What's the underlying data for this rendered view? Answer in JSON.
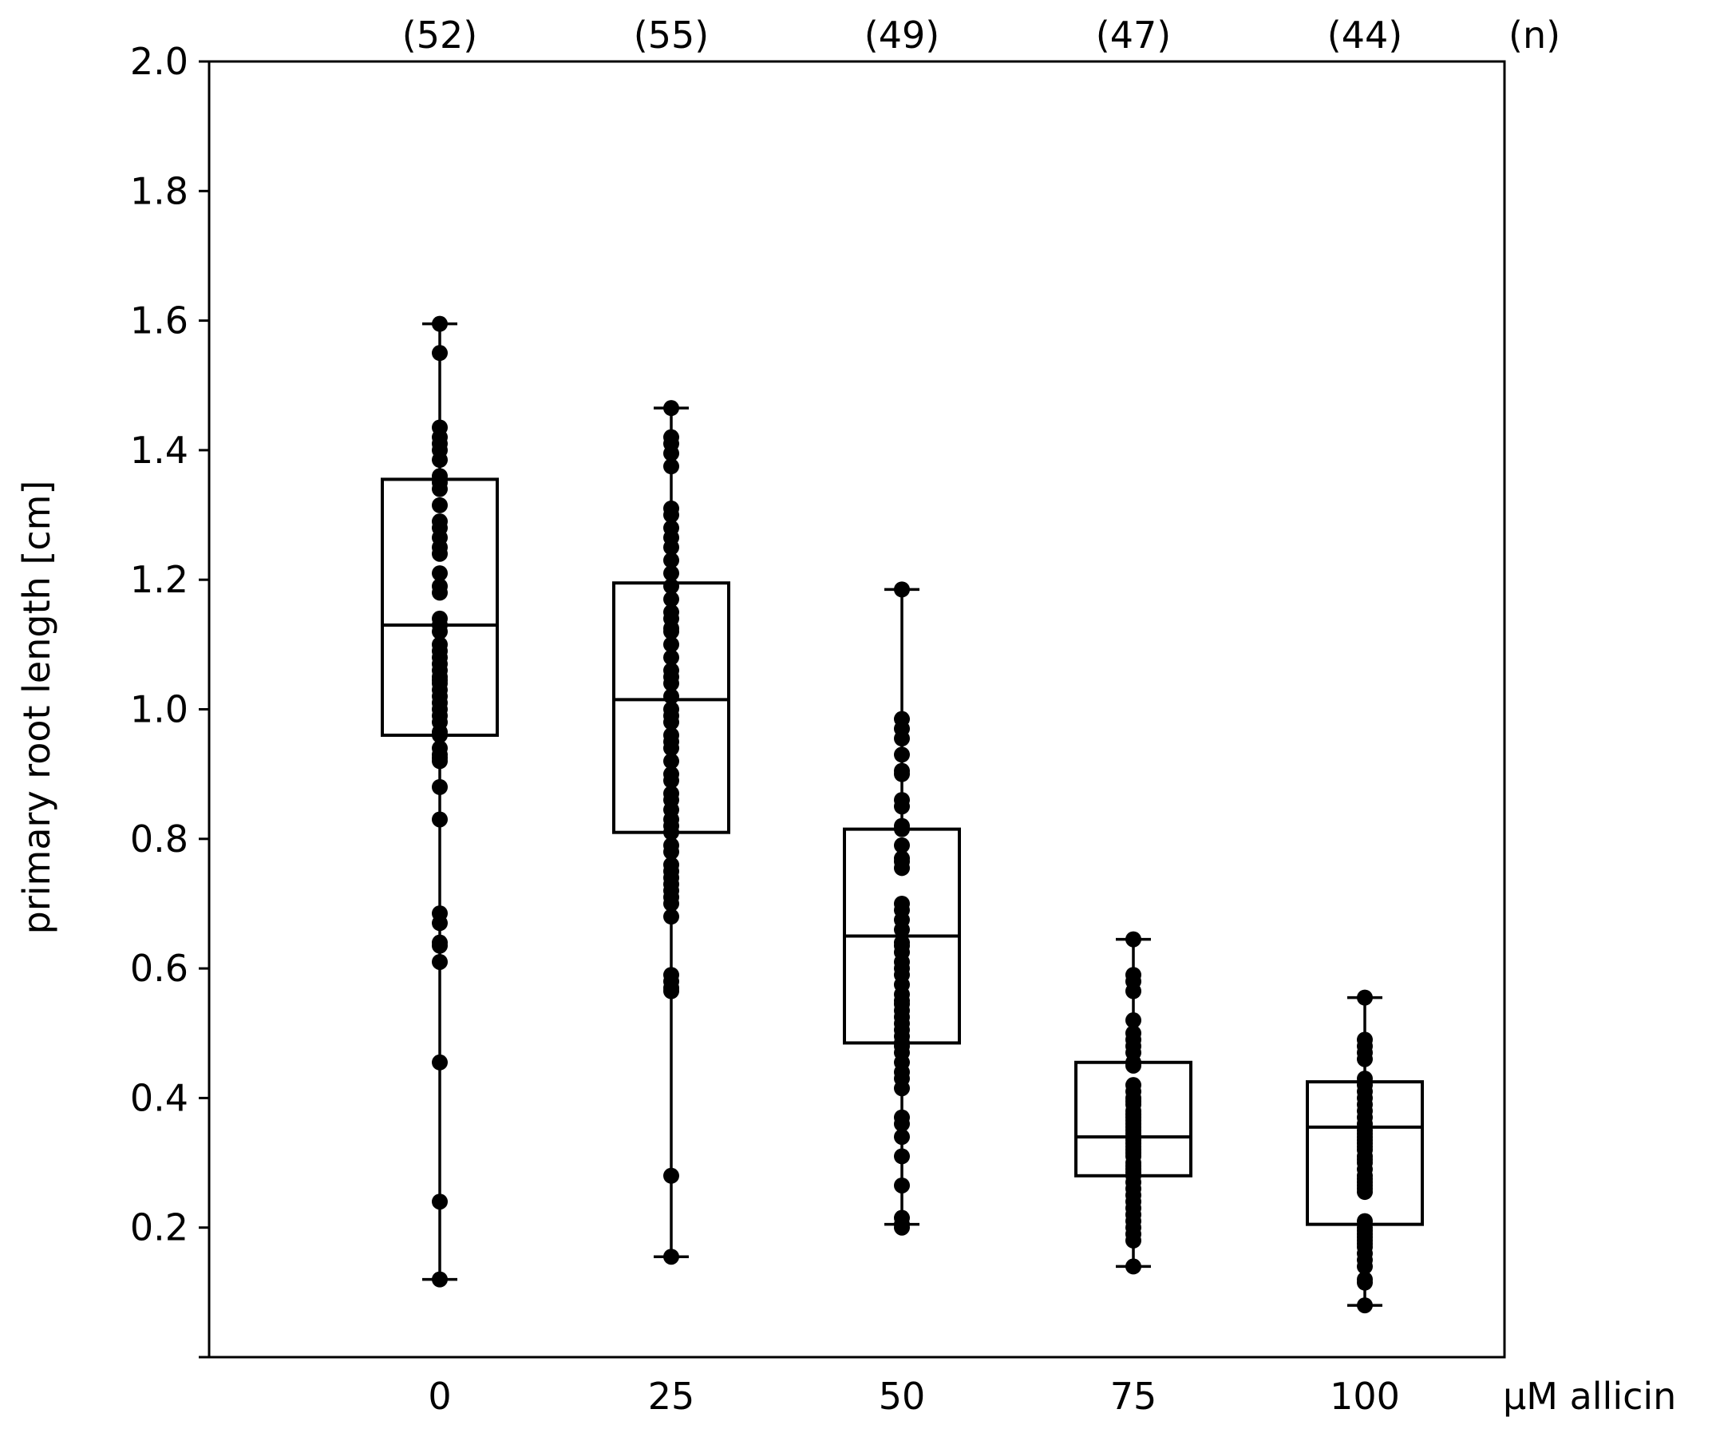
{
  "chart_data": {
    "type": "box",
    "xlabel": "μM allicin",
    "ylabel": "primary root length [cm]",
    "ylim": [
      0,
      2.0
    ],
    "yticks": [
      "0.2",
      "0.4",
      "0.6",
      "0.8",
      "1.0",
      "1.2",
      "1.4",
      "1.6",
      "1.8",
      "2.0"
    ],
    "n_label": "(n)",
    "grid": false,
    "groups": [
      {
        "category": "0",
        "n_text": "(52)",
        "whisker_low": 0.12,
        "q1": 0.96,
        "median": 1.13,
        "q3": 1.355,
        "whisker_high": 1.595,
        "points": [
          1.595,
          1.55,
          1.435,
          1.42,
          1.41,
          1.4,
          1.385,
          1.36,
          1.35,
          1.34,
          1.29,
          1.28,
          1.265,
          1.25,
          1.24,
          1.21,
          1.19,
          1.18,
          1.14,
          1.13,
          1.12,
          1.1,
          1.09,
          1.08,
          1.07,
          1.06,
          1.05,
          1.045,
          1.04,
          1.03,
          1.02,
          1.01,
          1.0,
          0.99,
          0.98,
          0.965,
          0.96,
          0.94,
          0.93,
          0.925,
          0.92,
          0.88,
          0.83,
          0.685,
          0.67,
          0.64,
          0.635,
          0.61,
          0.455,
          0.24,
          0.12,
          1.315
        ]
      },
      {
        "category": "25",
        "n_text": "(55)",
        "whisker_low": 0.155,
        "q1": 0.81,
        "median": 1.015,
        "q3": 1.195,
        "whisker_high": 1.465,
        "points": [
          1.465,
          1.42,
          1.41,
          1.395,
          1.375,
          1.31,
          1.3,
          1.28,
          1.265,
          1.25,
          1.23,
          1.21,
          1.19,
          1.17,
          1.15,
          1.14,
          1.12,
          1.1,
          1.08,
          1.06,
          1.05,
          1.04,
          1.02,
          1.0,
          0.99,
          0.98,
          0.96,
          0.95,
          0.94,
          0.92,
          0.9,
          0.89,
          0.87,
          0.86,
          0.845,
          0.83,
          0.82,
          0.81,
          0.79,
          0.78,
          0.76,
          0.75,
          0.74,
          0.73,
          0.72,
          0.71,
          0.7,
          0.59,
          0.58,
          0.57,
          0.565,
          0.28,
          0.155,
          1.125,
          0.68
        ]
      },
      {
        "category": "50",
        "n_text": "(49)",
        "whisker_low": 0.205,
        "q1": 0.485,
        "median": 0.65,
        "q3": 0.815,
        "whisker_high": 1.185,
        "points": [
          1.185,
          0.985,
          0.97,
          0.955,
          0.93,
          0.905,
          0.9,
          0.86,
          0.85,
          0.82,
          0.815,
          0.79,
          0.77,
          0.765,
          0.7,
          0.69,
          0.675,
          0.66,
          0.64,
          0.625,
          0.61,
          0.6,
          0.59,
          0.575,
          0.545,
          0.535,
          0.525,
          0.515,
          0.505,
          0.495,
          0.485,
          0.48,
          0.47,
          0.44,
          0.43,
          0.415,
          0.37,
          0.36,
          0.34,
          0.31,
          0.265,
          0.215,
          0.205,
          0.2,
          0.755,
          0.55,
          0.56,
          0.455,
          0.635
        ]
      },
      {
        "category": "75",
        "n_text": "(47)",
        "whisker_low": 0.14,
        "q1": 0.28,
        "median": 0.34,
        "q3": 0.455,
        "whisker_high": 0.645,
        "points": [
          0.645,
          0.59,
          0.58,
          0.565,
          0.52,
          0.5,
          0.49,
          0.48,
          0.47,
          0.455,
          0.45,
          0.42,
          0.41,
          0.4,
          0.39,
          0.38,
          0.37,
          0.365,
          0.36,
          0.35,
          0.345,
          0.34,
          0.335,
          0.33,
          0.32,
          0.31,
          0.3,
          0.29,
          0.285,
          0.28,
          0.27,
          0.26,
          0.25,
          0.24,
          0.23,
          0.22,
          0.21,
          0.2,
          0.19,
          0.18,
          0.14,
          0.355,
          0.325,
          0.315,
          0.295,
          0.375,
          0.395
        ]
      },
      {
        "category": "100",
        "n_text": "(44)",
        "whisker_low": 0.08,
        "q1": 0.205,
        "median": 0.355,
        "q3": 0.425,
        "whisker_high": 0.555,
        "points": [
          0.555,
          0.49,
          0.48,
          0.47,
          0.46,
          0.43,
          0.42,
          0.41,
          0.4,
          0.39,
          0.38,
          0.37,
          0.36,
          0.35,
          0.34,
          0.33,
          0.32,
          0.31,
          0.3,
          0.29,
          0.28,
          0.27,
          0.26,
          0.21,
          0.2,
          0.19,
          0.18,
          0.17,
          0.16,
          0.15,
          0.14,
          0.12,
          0.115,
          0.08,
          0.345,
          0.335,
          0.325,
          0.305,
          0.275,
          0.265,
          0.255,
          0.195,
          0.185,
          0.175
        ]
      }
    ]
  }
}
